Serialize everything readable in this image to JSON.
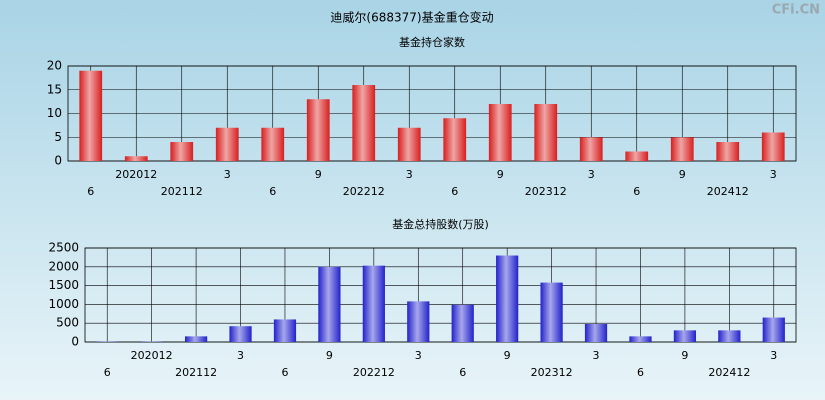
{
  "title": "迪威尔(688377)基金重仓变动",
  "watermark": "CFi.CN",
  "chart_data": [
    {
      "type": "bar",
      "title": "基金持仓家数",
      "categories": [
        "6",
        "202012",
        "202112",
        "3",
        "6",
        "9",
        "202212",
        "3",
        "6",
        "9",
        "202312",
        "3",
        "6",
        "9",
        "202412",
        "3"
      ],
      "values": [
        19,
        1,
        4,
        7,
        7,
        13,
        16,
        7,
        9,
        12,
        12,
        5,
        2,
        5,
        4,
        6
      ],
      "color": "#d81e1e",
      "ylim": [
        0,
        20
      ],
      "yticks": [
        0,
        5,
        10,
        15,
        20
      ],
      "grid": true
    },
    {
      "type": "bar",
      "title": "基金总持股数(万股)",
      "categories": [
        "6",
        "202012",
        "202112",
        "3",
        "6",
        "9",
        "202212",
        "3",
        "6",
        "9",
        "202312",
        "3",
        "6",
        "9",
        "202412",
        "3"
      ],
      "values": [
        10,
        10,
        150,
        420,
        600,
        2000,
        2030,
        1080,
        990,
        2300,
        1580,
        480,
        150,
        310,
        310,
        650
      ],
      "color": "#2222cc",
      "ylim": [
        0,
        2500
      ],
      "yticks": [
        0,
        500,
        1000,
        1500,
        2000,
        2500
      ],
      "grid": true
    }
  ]
}
